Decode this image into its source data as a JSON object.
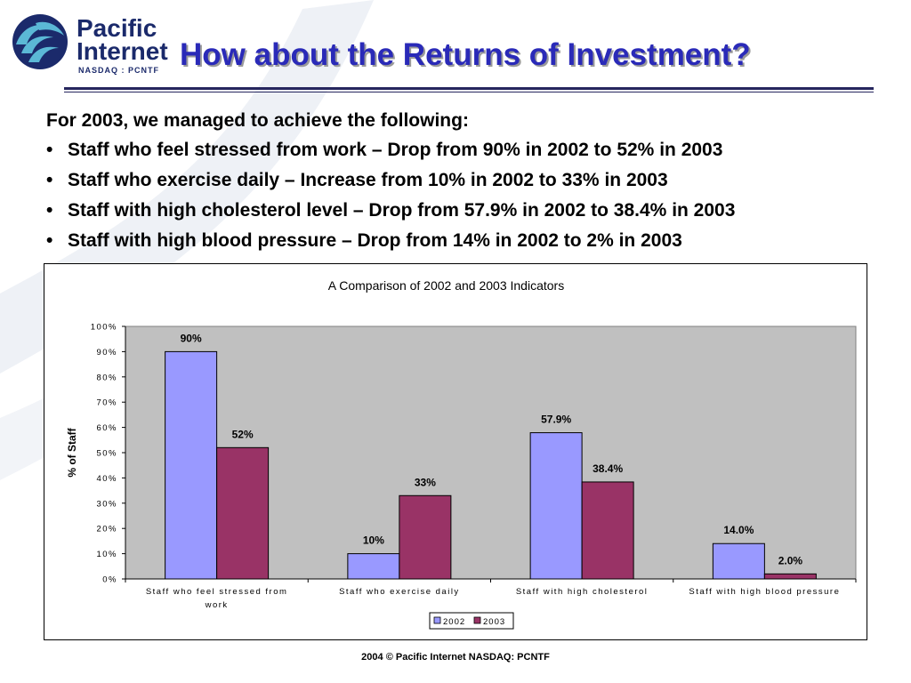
{
  "logo": {
    "line1": "Pacific",
    "line2": "Internet",
    "line3": "NASDAQ : PCNTF"
  },
  "title": "How about the Returns of Investment?",
  "intro": "For 2003, we managed to achieve the following:",
  "bullets": [
    "Staff who feel stressed from work – Drop from 90% in 2002 to 52% in 2003",
    "Staff who exercise daily – Increase from 10% in 2002 to 33% in 2003",
    "Staff with high cholesterol level – Drop from 57.9% in 2002 to 38.4% in 2003",
    "Staff with high blood pressure – Drop from 14% in 2002 to 2% in 2003"
  ],
  "chart_data": {
    "type": "bar",
    "title": "A Comparison of 2002 and 2003 Indicators",
    "xlabel": "",
    "ylabel": "% of Staff",
    "ylim": [
      0,
      100
    ],
    "yticks": [
      "0%",
      "10%",
      "20%",
      "30%",
      "40%",
      "50%",
      "60%",
      "70%",
      "80%",
      "90%",
      "100%"
    ],
    "categories": [
      [
        "Staff who feel stressed from",
        "work"
      ],
      [
        "Staff who exercise daily"
      ],
      [
        "Staff with high cholesterol"
      ],
      [
        "Staff with high blood pressure"
      ]
    ],
    "series": [
      {
        "name": "2002",
        "color": "#9999ff",
        "values": [
          90,
          10,
          57.9,
          14.0
        ],
        "labels": [
          "90%",
          "10%",
          "57.9%",
          "14.0%"
        ]
      },
      {
        "name": "2003",
        "color": "#993366",
        "values": [
          52,
          33,
          38.4,
          2.0
        ],
        "labels": [
          "52%",
          "33%",
          "38.4%",
          "2.0%"
        ]
      }
    ],
    "plot_background": "#c0c0c0",
    "grid": false,
    "legend": "bottom"
  },
  "footer": "2004 © Pacific Internet NASDAQ: PCNTF"
}
